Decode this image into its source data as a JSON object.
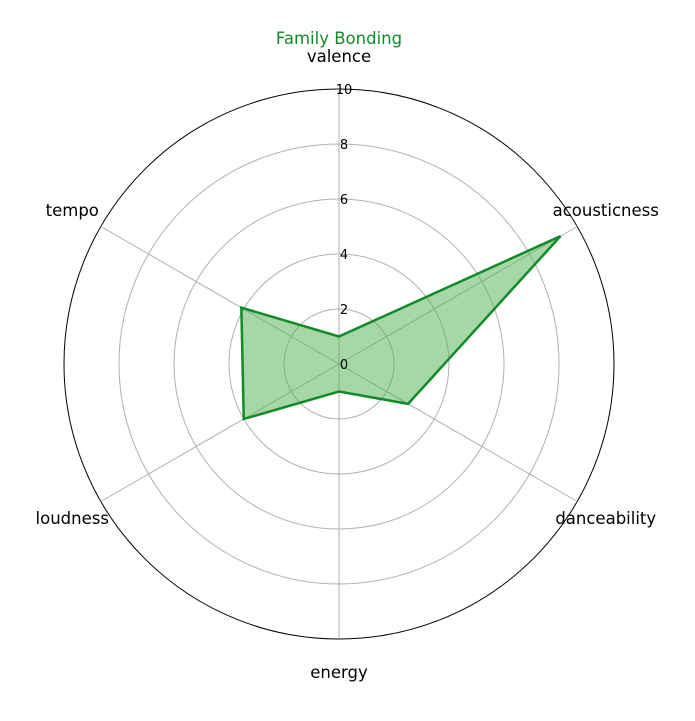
{
  "chart_data": {
    "type": "radar",
    "title": "Family Bonding",
    "title_color": "#138a28",
    "categories": [
      "valence",
      "acousticness",
      "danceability",
      "energy",
      "loudness",
      "tempo"
    ],
    "rlim": [
      0,
      10
    ],
    "rticks": [
      "0",
      "2",
      "4",
      "6",
      "8",
      "10"
    ],
    "rtick_values": [
      0,
      2,
      4,
      6,
      8,
      10
    ],
    "series": [
      {
        "values": [
          1,
          9.3,
          2.9,
          1,
          4,
          4.1
        ],
        "line_color": "#138a28",
        "fill_color": "#4caf50",
        "fill_opacity": 0.5
      }
    ],
    "grid": true
  }
}
